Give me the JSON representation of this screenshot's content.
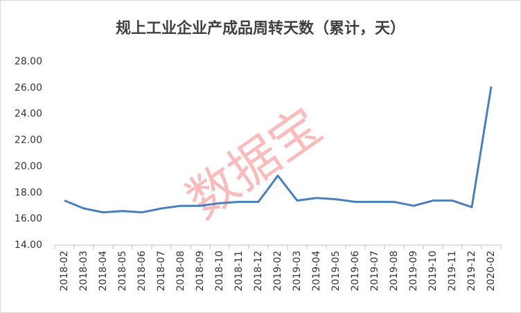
{
  "chart_data": {
    "type": "line",
    "title": "规上工业企业产成品周转天数（累计，天）",
    "watermark": "数据宝",
    "categories": [
      "2018-02",
      "2018-03",
      "2018-04",
      "2018-05",
      "2018-06",
      "2018-07",
      "2018-08",
      "2018-09",
      "2018-10",
      "2018-11",
      "2018-12",
      "2019-02",
      "2019-03",
      "2019-04",
      "2019-05",
      "2019-06",
      "2019-07",
      "2019-08",
      "2019-09",
      "2019-10",
      "2019-11",
      "2019-12",
      "2020-02"
    ],
    "series": [
      {
        "color": "#4a7ebb",
        "values": [
          17.4,
          16.8,
          16.5,
          16.6,
          16.5,
          16.8,
          17.0,
          17.0,
          17.2,
          17.3,
          17.3,
          19.3,
          17.4,
          17.6,
          17.5,
          17.3,
          17.3,
          17.3,
          17.0,
          17.4,
          17.4,
          16.9,
          26.1
        ]
      }
    ],
    "ylim": [
      14,
      28
    ],
    "yticks": [
      {
        "value": 14,
        "label": "14.00"
      },
      {
        "value": 16,
        "label": "16.00"
      },
      {
        "value": 18,
        "label": "18.00"
      },
      {
        "value": 20,
        "label": "20.00"
      },
      {
        "value": 22,
        "label": "22.00"
      },
      {
        "value": 24,
        "label": "24.00"
      },
      {
        "value": 26,
        "label": "26.00"
      },
      {
        "value": 28,
        "label": "28.00"
      }
    ],
    "grid": false
  }
}
